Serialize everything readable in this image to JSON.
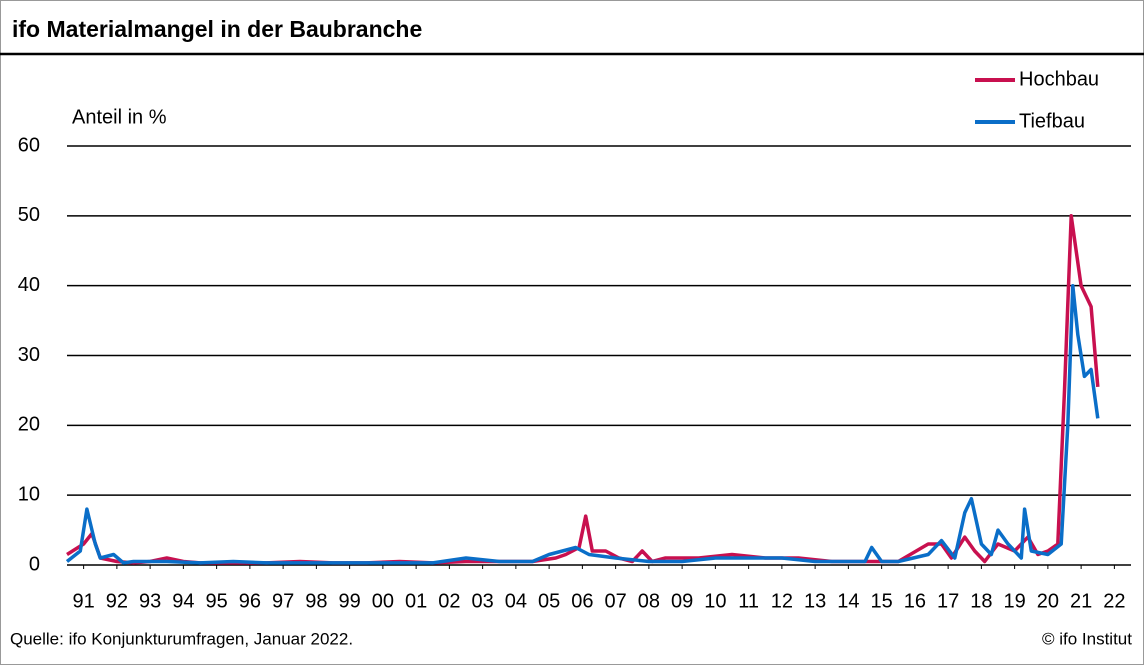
{
  "chart_data": {
    "type": "line",
    "title": "ifo Materialmangel in der Baubranche",
    "y_label": "Anteil in %",
    "source": "Quelle: ifo Konjunkturumfragen, Januar 2022.",
    "copyright": "© ifo Institut",
    "legend": "top-right",
    "grid": true,
    "xlim": [
      1991,
      2023
    ],
    "xticks": [
      {
        "value": 1991.5,
        "label": "91"
      },
      {
        "value": 1992.5,
        "label": "92"
      },
      {
        "value": 1993.5,
        "label": "93"
      },
      {
        "value": 1994.5,
        "label": "94"
      },
      {
        "value": 1995.5,
        "label": "95"
      },
      {
        "value": 1996.5,
        "label": "96"
      },
      {
        "value": 1997.5,
        "label": "97"
      },
      {
        "value": 1998.5,
        "label": "98"
      },
      {
        "value": 1999.5,
        "label": "99"
      },
      {
        "value": 2000.5,
        "label": "00"
      },
      {
        "value": 2001.5,
        "label": "01"
      },
      {
        "value": 2002.5,
        "label": "02"
      },
      {
        "value": 2003.5,
        "label": "03"
      },
      {
        "value": 2004.5,
        "label": "04"
      },
      {
        "value": 2005.5,
        "label": "05"
      },
      {
        "value": 2006.5,
        "label": "06"
      },
      {
        "value": 2007.5,
        "label": "07"
      },
      {
        "value": 2008.5,
        "label": "08"
      },
      {
        "value": 2009.5,
        "label": "09"
      },
      {
        "value": 2010.5,
        "label": "10"
      },
      {
        "value": 2011.5,
        "label": "11"
      },
      {
        "value": 2012.5,
        "label": "12"
      },
      {
        "value": 2013.5,
        "label": "13"
      },
      {
        "value": 2014.5,
        "label": "14"
      },
      {
        "value": 2015.5,
        "label": "15"
      },
      {
        "value": 2016.5,
        "label": "16"
      },
      {
        "value": 2017.5,
        "label": "17"
      },
      {
        "value": 2018.5,
        "label": "18"
      },
      {
        "value": 2019.5,
        "label": "19"
      },
      {
        "value": 2020.5,
        "label": "20"
      },
      {
        "value": 2021.5,
        "label": "21"
      },
      {
        "value": 2022.5,
        "label": "22"
      }
    ],
    "ylim": [
      0,
      60
    ],
    "yticks": [
      0,
      10,
      20,
      30,
      40,
      50,
      60
    ],
    "series": [
      {
        "name": "Hochbau",
        "color": "#c8104f",
        "x": [
          1991.0,
          1991.5,
          1991.75,
          1992.0,
          1992.5,
          1993.0,
          1993.5,
          1994.0,
          1994.5,
          1995.0,
          1996.0,
          1997.0,
          1998.0,
          1999.0,
          2000.0,
          2001.0,
          2002.0,
          2003.0,
          2004.0,
          2005.0,
          2005.7,
          2006.0,
          2006.4,
          2006.6,
          2006.8,
          2007.2,
          2007.6,
          2008.0,
          2008.3,
          2008.6,
          2009.0,
          2010.0,
          2011.0,
          2012.0,
          2013.0,
          2014.0,
          2015.0,
          2016.0,
          2016.9,
          2017.3,
          2017.6,
          2018.0,
          2018.3,
          2018.6,
          2019.0,
          2019.5,
          2019.9,
          2020.2,
          2020.5,
          2020.8,
          2021.0,
          2021.2,
          2021.5,
          2021.8,
          2022.0
        ],
        "values": [
          1.5,
          3,
          4.5,
          1,
          0.5,
          0.3,
          0.5,
          1,
          0.5,
          0.3,
          0.3,
          0.3,
          0.5,
          0.3,
          0.3,
          0.5,
          0.3,
          0.5,
          0.5,
          0.5,
          1,
          1.5,
          2.5,
          7,
          2,
          2,
          1,
          0.5,
          2,
          0.5,
          1,
          1,
          1.5,
          1,
          1,
          0.5,
          0.5,
          0.5,
          3,
          3,
          1,
          4,
          2,
          0.5,
          3,
          2,
          4,
          1.5,
          2,
          3,
          25,
          50,
          40,
          37,
          25.5
        ]
      },
      {
        "name": "Tiefbau",
        "color": "#0a6ec8",
        "x": [
          1991.0,
          1991.4,
          1991.6,
          1991.85,
          1992.0,
          1992.4,
          1992.7,
          1993.0,
          1994.0,
          1995.0,
          1996.0,
          1997.0,
          1998.0,
          1999.0,
          2000.0,
          2001.0,
          2002.0,
          2003.0,
          2004.0,
          2005.0,
          2005.5,
          2006.3,
          2006.7,
          2007.5,
          2008.5,
          2009.5,
          2010.5,
          2011.5,
          2012.5,
          2013.5,
          2014.5,
          2015.0,
          2015.2,
          2015.5,
          2016.0,
          2016.9,
          2017.3,
          2017.7,
          2018.0,
          2018.2,
          2018.5,
          2018.8,
          2019.0,
          2019.3,
          2019.7,
          2019.8,
          2020.0,
          2020.5,
          2020.9,
          2021.1,
          2021.25,
          2021.4,
          2021.6,
          2021.8,
          2022.0
        ],
        "values": [
          0.5,
          2,
          8,
          3,
          1,
          1.5,
          0.3,
          0.5,
          0.5,
          0.3,
          0.5,
          0.3,
          0.3,
          0.3,
          0.3,
          0.3,
          0.3,
          1,
          0.5,
          0.5,
          1.5,
          2.5,
          1.5,
          1,
          0.5,
          0.5,
          1,
          1,
          1,
          0.5,
          0.5,
          0.5,
          2.5,
          0.5,
          0.5,
          1.5,
          3.5,
          1,
          7.5,
          9.5,
          3,
          1.5,
          5,
          3,
          1,
          8,
          2,
          1.5,
          3,
          20,
          40,
          33,
          27,
          28,
          21
        ]
      }
    ]
  }
}
